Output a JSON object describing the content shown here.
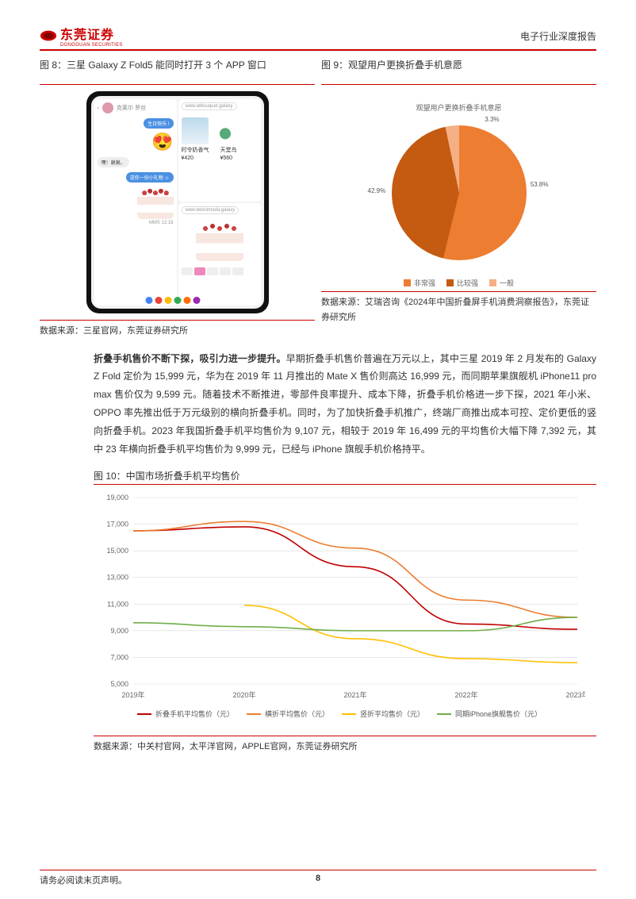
{
  "header": {
    "brand": "东莞证券",
    "brand_sub": "DONGGUAN SECURITIES",
    "report_type": "电子行业深度报告"
  },
  "fig8": {
    "title": "图 8：三星 Galaxy Z Fold5 能同时打开 3 个 APP 窗口",
    "phone": {
      "url1": "www.atbouquet.galaxy",
      "url2": "www.belcomoda.galaxy",
      "price1_label": "时令奶香气",
      "price1": "¥420",
      "price2_label": "天堂鸟",
      "price2": "¥560",
      "chat_name": "克莱尔·罗丝",
      "bubble1": "生日快乐 !",
      "bubble_in": "嘿！谢谢。",
      "bubble2": "送你一份小礼物 ☺",
      "time": "MMS 12:18",
      "dock_colors": [
        "#4285f4",
        "#ea4335",
        "#fbbc05",
        "#34a853",
        "#ff6d00",
        "#9c27b0",
        "#ffffff"
      ]
    },
    "source": "数据来源：三星官网，东莞证券研究所"
  },
  "fig9": {
    "title": "图 9：观望用户更换折叠手机意愿",
    "pie": {
      "chart_title": "观望用户更换折叠手机意愿",
      "slices": [
        {
          "label": "非常强",
          "value": 53.8,
          "color": "#ed7d31"
        },
        {
          "label": "比较强",
          "value": 42.9,
          "color": "#c55a11"
        },
        {
          "label": "一般",
          "value": 3.3,
          "color": "#f4b084"
        }
      ],
      "label_53": "53.8%",
      "label_42": "42.9%",
      "label_3": "3.3%",
      "legend": [
        "非常强",
        "比较强",
        "一般"
      ]
    },
    "source": "数据来源：艾瑞咨询《2024年中国折叠屏手机消费洞察报告》，东莞证券研究所"
  },
  "body": {
    "bold": "折叠手机售价不断下探，吸引力进一步提升。",
    "text": "早期折叠手机售价普遍在万元以上，其中三星 2019 年 2 月发布的 Galaxy Z Fold 定价为 15,999 元，华为在 2019 年 11 月推出的 Mate X 售价则高达 16,999 元，而同期苹果旗舰机 iPhone11 pro max 售价仅为 9,599 元。随着技术不断推进，零部件良率提升、成本下降，折叠手机价格进一步下探，2021 年小米、OPPO 率先推出低于万元级别的横向折叠手机。同时，为了加快折叠手机推广，终端厂商推出成本可控、定价更低的竖向折叠手机。2023 年我国折叠手机平均售价为 9,107 元，相较于 2019 年 16,499 元的平均售价大幅下降 7,392 元，其中 23 年横向折叠手机平均售价为 9,999 元，已经与 iPhone 旗舰手机价格持平。"
  },
  "fig10": {
    "title": "图 10：中国市场折叠手机平均售价",
    "y_axis": [
      5000,
      7000,
      9000,
      11000,
      13000,
      15000,
      17000,
      19000
    ],
    "y_labels": [
      "5,000",
      "7,000",
      "9,000",
      "11,000",
      "13,000",
      "15,000",
      "17,000",
      "19,000"
    ],
    "x_labels": [
      "2019年",
      "2020年",
      "2021年",
      "2022年",
      "2023年"
    ],
    "series": [
      {
        "name": "折叠手机平均售价（元）",
        "color": "#c00000",
        "values": [
          16499,
          16800,
          13800,
          9500,
          9107
        ]
      },
      {
        "name": "横折平均售价（元）",
        "color": "#ed7d31",
        "values": [
          16499,
          17200,
          15200,
          11300,
          9999
        ]
      },
      {
        "name": "竖折平均售价（元）",
        "color": "#ffc000",
        "values": [
          null,
          10900,
          8400,
          6900,
          6600
        ]
      },
      {
        "name": "同期iPhone旗舰售价（元）",
        "color": "#70ad47",
        "values": [
          9599,
          9299,
          8999,
          8999,
          9999
        ]
      }
    ],
    "ylim": [
      5000,
      19000
    ],
    "plot_bg": "#ffffff",
    "grid_color": "#d9d9d9",
    "source": "数据来源：中关村官网，太平洋官网，APPLE官网，东莞证券研究所"
  },
  "footer": {
    "disclaimer": "请务必阅读末页声明。",
    "page": "8"
  }
}
